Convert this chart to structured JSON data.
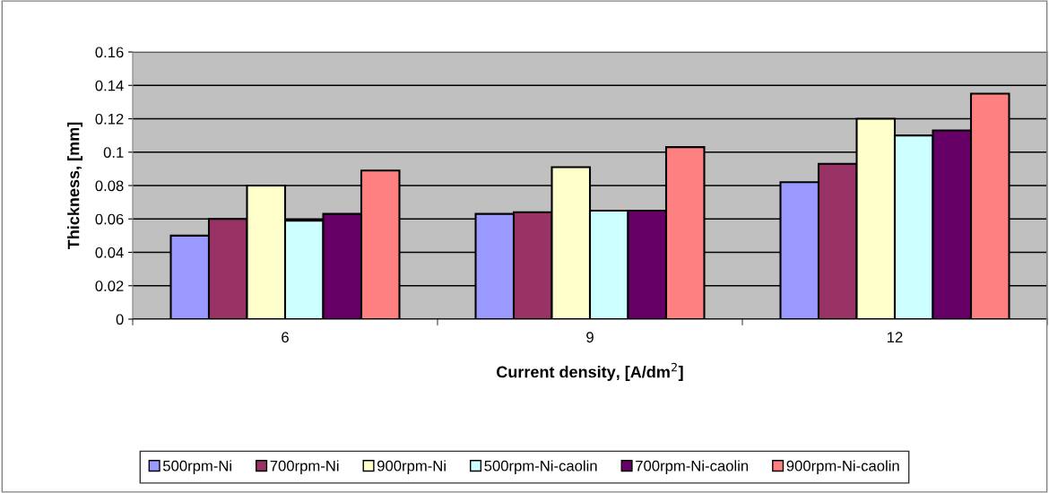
{
  "chart_data": {
    "type": "bar",
    "xlabel": "Current density, [A/dm$^{2}$]",
    "ylabel": "Thickness, [mm]",
    "categories": [
      "6",
      "9",
      "12"
    ],
    "series": [
      {
        "name": "500rpm-Ni",
        "color": "#9999ff",
        "values": [
          0.05,
          0.063,
          0.082
        ]
      },
      {
        "name": "700rpm-Ni",
        "color": "#993366",
        "values": [
          0.06,
          0.064,
          0.093
        ]
      },
      {
        "name": "900rpm-Ni",
        "color": "#ffffcc",
        "values": [
          0.08,
          0.091,
          0.12
        ]
      },
      {
        "name": "500rpm-Ni-caolin",
        "color": "#ccffff",
        "values": [
          0.059,
          0.065,
          0.11
        ]
      },
      {
        "name": "700rpm-Ni-caolin",
        "color": "#660066",
        "values": [
          0.063,
          0.065,
          0.113
        ]
      },
      {
        "name": "900rpm-Ni-caolin",
        "color": "#ff8080",
        "values": [
          0.089,
          0.103,
          0.135
        ]
      }
    ],
    "ylim": [
      0,
      0.16
    ],
    "yticks": [
      0,
      0.02,
      0.04,
      0.06,
      0.08,
      0.1,
      0.12,
      0.14,
      0.16
    ],
    "grid": "y",
    "legend": "bottom"
  }
}
